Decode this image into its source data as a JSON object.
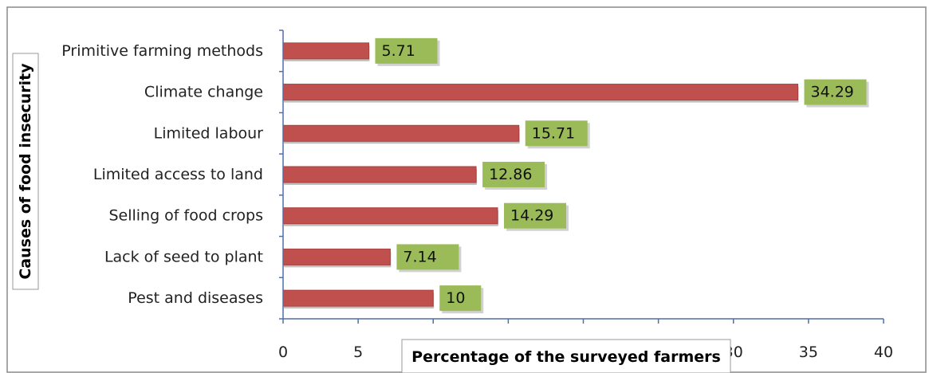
{
  "chart_data": {
    "type": "bar",
    "orientation": "horizontal",
    "categories": [
      "Pest and diseases",
      "Lack of seed to plant",
      "Selling of food crops",
      "Limited access to land",
      "Limited labour",
      "Climate change",
      "Primitive farming methods"
    ],
    "values": [
      10,
      7.14,
      14.29,
      12.86,
      15.71,
      34.29,
      5.71
    ],
    "value_labels": [
      "10",
      "7.14",
      "14.29",
      "12.86",
      "15.71",
      "34.29",
      "5.71"
    ],
    "xlabel": "Percentage of the surveyed farmers",
    "ylabel": "Causes of food insecurity",
    "xlim": [
      0,
      40
    ],
    "xticks": [
      0,
      5,
      10,
      15,
      20,
      25,
      30,
      35,
      40
    ],
    "xtick_labels": [
      "0",
      "5",
      "",
      "",
      "",
      "",
      "30",
      "35",
      "40"
    ],
    "grid": false,
    "legend": "none",
    "colors": {
      "bar": "#c0504d",
      "data_label_box": "#9bbb59",
      "axis": "#4f6fa8",
      "frame": "#8a8a8a",
      "title_box_border": "#9a9a9a"
    }
  }
}
